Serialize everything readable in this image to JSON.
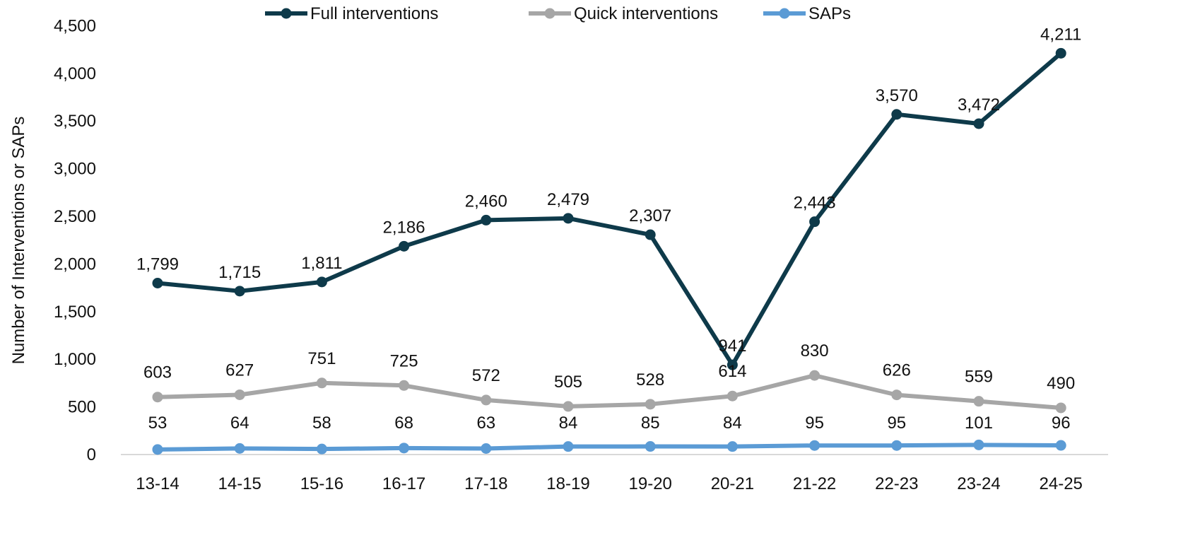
{
  "chart_data": {
    "type": "line",
    "categories": [
      "13-14",
      "14-15",
      "15-16",
      "16-17",
      "17-18",
      "18-19",
      "19-20",
      "20-21",
      "21-22",
      "22-23",
      "23-24",
      "24-25"
    ],
    "series": [
      {
        "name": "Full interventions",
        "color": "#0e3a4a",
        "values": [
          1799,
          1715,
          1811,
          2186,
          2460,
          2479,
          2307,
          941,
          2443,
          3570,
          3472,
          4211
        ],
        "labels": [
          "1,799",
          "1,715",
          "1,811",
          "2,186",
          "2,460",
          "2,479",
          "2,307",
          "941",
          "2,443",
          "3,570",
          "3,472",
          "4,211"
        ]
      },
      {
        "name": "Quick interventions",
        "color": "#a6a6a6",
        "values": [
          603,
          627,
          751,
          725,
          572,
          505,
          528,
          614,
          830,
          626,
          559,
          490
        ],
        "labels": [
          "603",
          "627",
          "751",
          "725",
          "572",
          "505",
          "528",
          "614",
          "830",
          "626",
          "559",
          "490"
        ]
      },
      {
        "name": "SAPs",
        "color": "#5b9bd5",
        "values": [
          53,
          64,
          58,
          68,
          63,
          84,
          85,
          84,
          95,
          95,
          101,
          96
        ],
        "labels": [
          "53",
          "64",
          "58",
          "68",
          "63",
          "84",
          "85",
          "84",
          "95",
          "95",
          "101",
          "96"
        ]
      }
    ],
    "ylabel": "Number of Interventions or SAPs",
    "xlabel": "",
    "ylim": [
      0,
      4500
    ],
    "yticks": [
      0,
      500,
      1000,
      1500,
      2000,
      2500,
      3000,
      3500,
      4000,
      4500
    ],
    "ytick_labels": [
      "0",
      "500",
      "1,000",
      "1,500",
      "2,000",
      "2,500",
      "3,000",
      "3,500",
      "4,000",
      "4,500"
    ],
    "grid": false,
    "legend_position": "top"
  }
}
